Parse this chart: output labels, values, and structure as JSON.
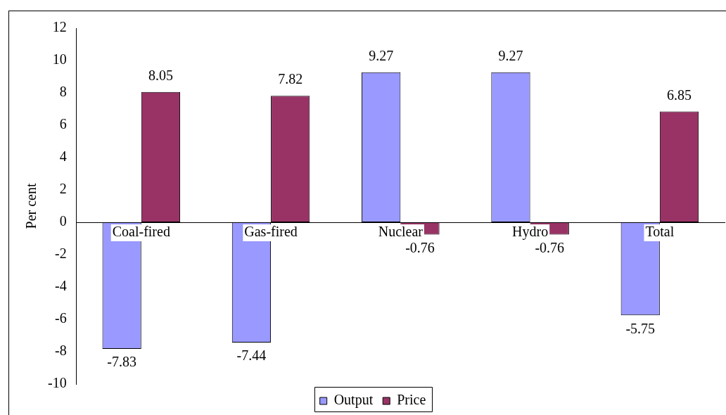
{
  "chart_data": {
    "type": "bar",
    "ylabel": "Per cent",
    "categories": [
      "Coal-fired",
      "Gas-fired",
      "Nuclear",
      "Hydro",
      "Total"
    ],
    "series": [
      {
        "name": "Output",
        "color": "#9999ff",
        "values": [
          -7.83,
          -7.44,
          9.27,
          9.27,
          -5.75
        ]
      },
      {
        "name": "Price",
        "color": "#993366",
        "values": [
          8.05,
          7.82,
          -0.76,
          -0.76,
          6.85
        ]
      }
    ],
    "ylim": [
      -10,
      12
    ],
    "yticks": [
      -10,
      -8,
      -6,
      -4,
      -2,
      0,
      2,
      4,
      6,
      8,
      10,
      12
    ],
    "grid": false,
    "legend": "bottom",
    "data_labels": true
  }
}
